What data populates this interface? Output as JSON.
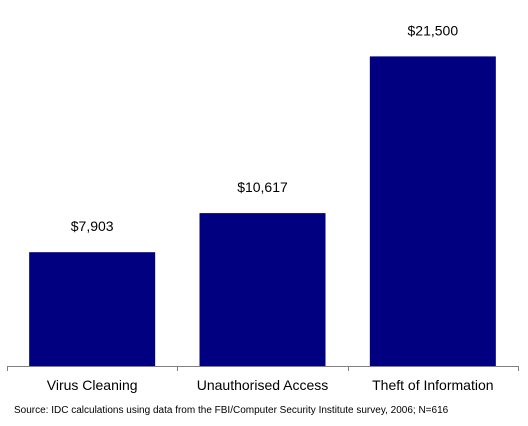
{
  "chart_data": {
    "type": "bar",
    "categories": [
      "Virus Cleaning",
      "Unauthorised Access",
      "Theft of Information"
    ],
    "values": [
      7903,
      10617,
      21500
    ],
    "value_labels": [
      "$7,903",
      "$10,617",
      "$21,500"
    ],
    "ylim": [
      0,
      25000
    ],
    "grid": false,
    "bar_color": "#000080",
    "axis_color": "#808080"
  },
  "source": "Source: IDC calculations using data from the FBI/Computer Security Institute survey, 2006; N=616"
}
